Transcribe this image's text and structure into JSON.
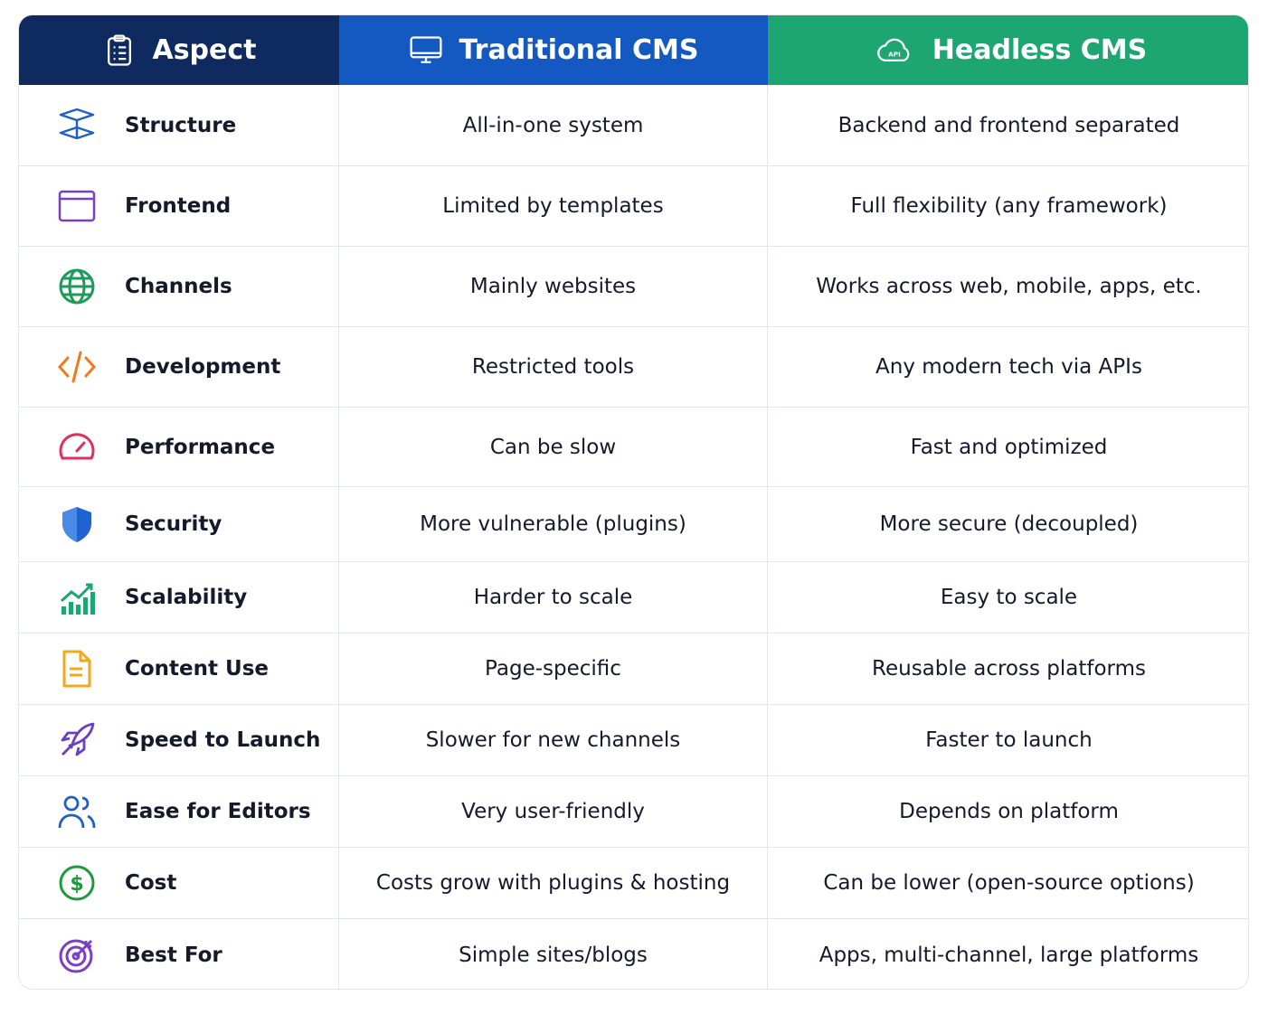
{
  "table": {
    "columns": [
      {
        "label": "Aspect"
      },
      {
        "label": "Traditional CMS"
      },
      {
        "label": "Headless CMS",
        "icon_text": "API"
      }
    ],
    "rows": [
      [
        "Structure",
        "All-in-one system",
        "Backend and frontend separated"
      ],
      [
        "Frontend",
        "Limited by templates",
        "Full flexibility (any framework)"
      ],
      [
        "Channels",
        "Mainly websites",
        "Works across web, mobile, apps, etc."
      ],
      [
        "Development",
        "Restricted tools",
        "Any modern tech via APIs"
      ],
      [
        "Performance",
        "Can be slow",
        "Fast and optimized"
      ],
      [
        "Security",
        "More vulnerable (plugins)",
        "More secure (decoupled)"
      ],
      [
        "Scalability",
        "Harder to scale",
        "Easy to scale"
      ],
      [
        "Content Use",
        "Page-specific",
        "Reusable across platforms"
      ],
      [
        "Speed to Launch",
        "Slower for new channels",
        "Faster to launch"
      ],
      [
        "Ease for Editors",
        "Very user-friendly",
        "Depends on platform"
      ],
      [
        "Cost",
        "Costs grow with plugins & hosting",
        "Can be lower (open-source options)"
      ],
      [
        "Best For",
        "Simple sites/blogs",
        "Apps, multi-channel, large platforms"
      ]
    ]
  }
}
